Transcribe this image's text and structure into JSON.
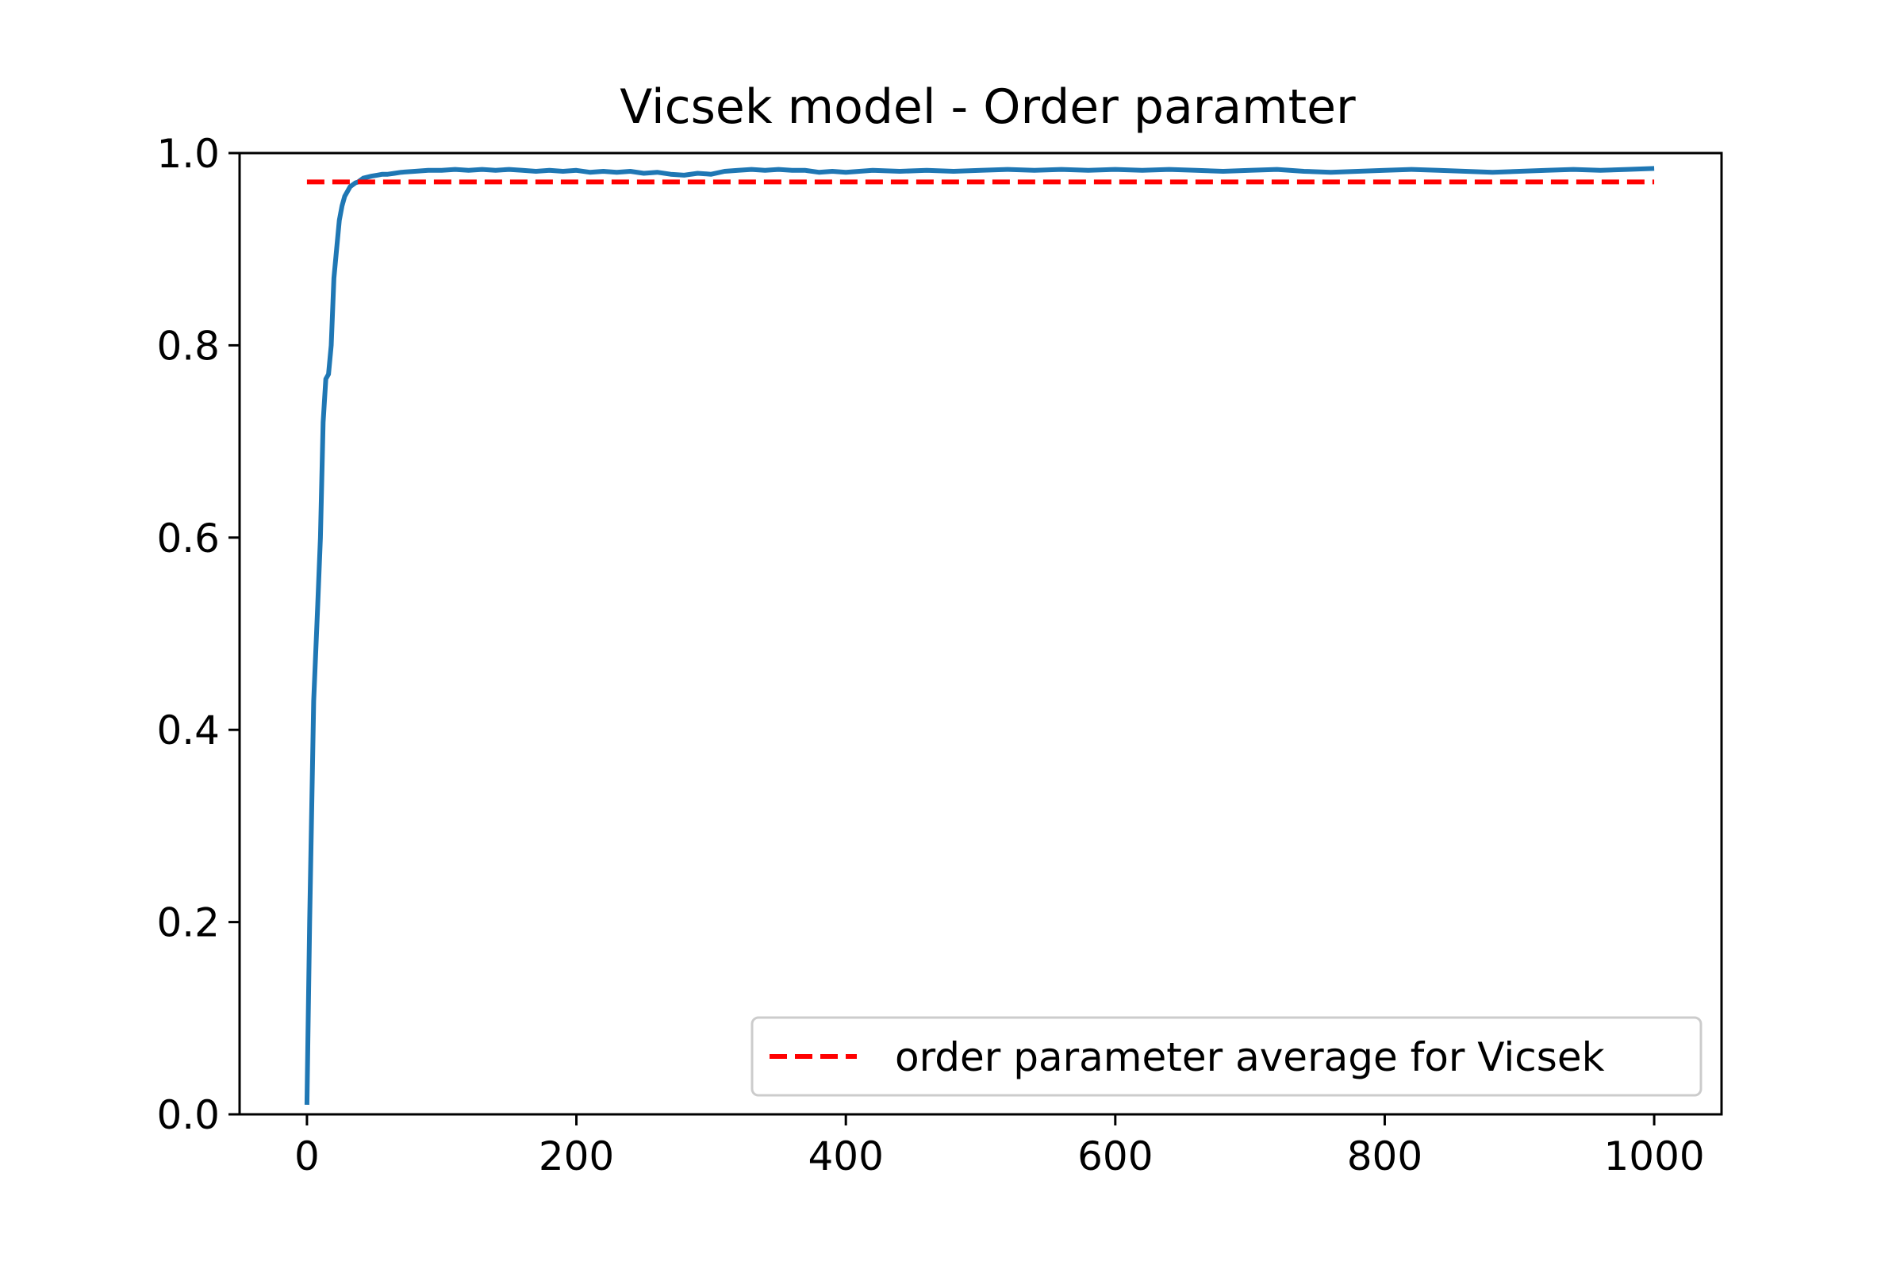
{
  "chart_data": {
    "type": "line",
    "title": "Vicsek model - Order paramter",
    "xlabel": "",
    "ylabel": "",
    "xlim": [
      -50,
      1050
    ],
    "ylim": [
      0.0,
      1.0
    ],
    "x_ticks": [
      0,
      200,
      400,
      600,
      800,
      1000
    ],
    "x_tick_labels": [
      "0",
      "200",
      "400",
      "600",
      "800",
      "1000"
    ],
    "y_ticks": [
      0.0,
      0.2,
      0.4,
      0.6,
      0.8,
      1.0
    ],
    "y_tick_labels": [
      "0.0",
      "0.2",
      "0.4",
      "0.6",
      "0.8",
      "1.0"
    ],
    "grid": false,
    "legend_position": "lower-right",
    "series": [
      {
        "name": "",
        "color": "#1f77b4",
        "style": "solid",
        "x": [
          0,
          2,
          5,
          8,
          10,
          12,
          14,
          16,
          18,
          20,
          22,
          24,
          26,
          28,
          30,
          32,
          34,
          36,
          38,
          40,
          42,
          45,
          48,
          52,
          56,
          60,
          65,
          70,
          80,
          90,
          100,
          110,
          120,
          130,
          140,
          150,
          160,
          170,
          180,
          190,
          200,
          210,
          220,
          230,
          240,
          250,
          260,
          270,
          280,
          290,
          300,
          310,
          320,
          330,
          340,
          350,
          360,
          370,
          380,
          390,
          400,
          420,
          440,
          460,
          480,
          500,
          520,
          540,
          560,
          580,
          600,
          620,
          640,
          660,
          680,
          700,
          720,
          740,
          760,
          780,
          800,
          820,
          840,
          860,
          880,
          900,
          920,
          940,
          960,
          980,
          1000
        ],
        "y": [
          0.01,
          0.2,
          0.43,
          0.53,
          0.6,
          0.72,
          0.765,
          0.77,
          0.8,
          0.87,
          0.9,
          0.93,
          0.945,
          0.955,
          0.96,
          0.965,
          0.967,
          0.969,
          0.97,
          0.972,
          0.974,
          0.975,
          0.976,
          0.977,
          0.978,
          0.978,
          0.979,
          0.98,
          0.981,
          0.982,
          0.982,
          0.983,
          0.982,
          0.983,
          0.982,
          0.983,
          0.982,
          0.981,
          0.982,
          0.981,
          0.982,
          0.98,
          0.981,
          0.98,
          0.981,
          0.979,
          0.98,
          0.978,
          0.977,
          0.979,
          0.978,
          0.981,
          0.982,
          0.983,
          0.982,
          0.983,
          0.982,
          0.982,
          0.98,
          0.981,
          0.98,
          0.982,
          0.981,
          0.982,
          0.981,
          0.982,
          0.983,
          0.982,
          0.983,
          0.982,
          0.983,
          0.982,
          0.983,
          0.982,
          0.981,
          0.982,
          0.983,
          0.981,
          0.98,
          0.981,
          0.982,
          0.983,
          0.982,
          0.981,
          0.98,
          0.981,
          0.982,
          0.983,
          0.982,
          0.983,
          0.984
        ]
      },
      {
        "name": "order parameter average for Vicsek",
        "color": "#ff0000",
        "style": "dashed",
        "x": [
          0,
          1000
        ],
        "y": [
          0.97,
          0.97
        ]
      }
    ]
  }
}
